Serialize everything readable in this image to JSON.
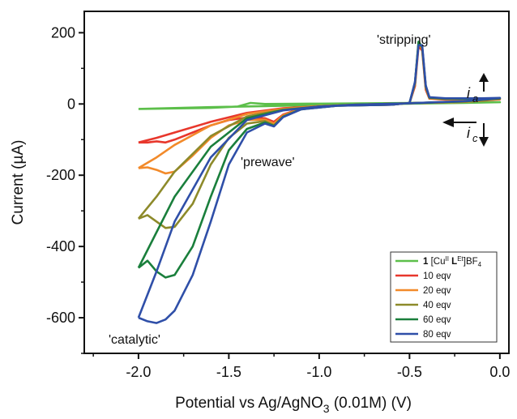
{
  "chart_data": {
    "type": "line",
    "title": "",
    "xlabel": "Potential vs Ag/AgNO",
    "xlabel_sub": "3",
    "xlabel_tail": " (0.01M) (V)",
    "ylabel": "Current (µA)",
    "xlim": [
      -2.3,
      0.05
    ],
    "ylim": [
      -700,
      260
    ],
    "xticks": [
      -2.0,
      -1.5,
      -1.0,
      -0.5,
      0.0
    ],
    "xtick_labels": [
      "-2.0",
      "-1.5",
      "-1.0",
      "-0.5",
      "0.0"
    ],
    "yticks": [
      200,
      0,
      -200,
      -400,
      -600
    ],
    "ytick_labels": [
      "200",
      "0",
      "-200",
      "-400",
      "-600"
    ],
    "grid": false,
    "legend_position": "bottom-right",
    "legend": [
      {
        "bold": "1",
        "text": " [Cu",
        "sup1": "II",
        "bold2": " L",
        "sup2": "Et",
        "tail": "]BF",
        "sub": "4",
        "color": "#5cbf4a"
      },
      {
        "text": "10  eqv",
        "color": "#e8372c"
      },
      {
        "text": "20  eqv",
        "color": "#f28a2a"
      },
      {
        "text": "40  eqv",
        "color": "#8d8a2a"
      },
      {
        "text": "60  eqv",
        "color": "#1a7f3c"
      },
      {
        "text": "80  eqv",
        "color": "#2f4fa8"
      }
    ],
    "annotations": {
      "stripping": "'stripping'",
      "prewave": "'prewave'",
      "catalytic": "'catalytic'",
      "ia_main": "i",
      "ia_sub": "a",
      "ic_main": "i",
      "ic_sub": "c"
    },
    "series": [
      {
        "color": "#5cbf4a",
        "points": [
          [
            -2.0,
            -14
          ],
          [
            -1.6,
            -11
          ],
          [
            -1.45,
            -7
          ],
          [
            -1.38,
            3
          ],
          [
            -1.3,
            0
          ],
          [
            -1.0,
            1
          ],
          [
            -0.7,
            2
          ],
          [
            -0.5,
            3
          ],
          [
            -0.2,
            4
          ],
          [
            0.0,
            5
          ],
          [
            -0.2,
            3
          ],
          [
            -0.5,
            1
          ],
          [
            -0.9,
            -2
          ],
          [
            -1.3,
            -6
          ],
          [
            -1.6,
            -9
          ],
          [
            -2.0,
            -14
          ]
        ]
      },
      {
        "color": "#e8372c",
        "points": [
          [
            -2.0,
            -108
          ],
          [
            -1.95,
            -108
          ],
          [
            -1.9,
            -105
          ],
          [
            -1.85,
            -108
          ],
          [
            -1.8,
            -100
          ],
          [
            -1.7,
            -80
          ],
          [
            -1.6,
            -60
          ],
          [
            -1.5,
            -45
          ],
          [
            -1.4,
            -38
          ],
          [
            -1.3,
            -40
          ],
          [
            -1.25,
            -50
          ],
          [
            -1.2,
            -30
          ],
          [
            -1.1,
            -12
          ],
          [
            -0.9,
            -4
          ],
          [
            -0.6,
            -2
          ],
          [
            -0.5,
            3
          ],
          [
            -0.47,
            50
          ],
          [
            -0.45,
            162
          ],
          [
            -0.43,
            150
          ],
          [
            -0.41,
            40
          ],
          [
            -0.39,
            15
          ],
          [
            -0.3,
            12
          ],
          [
            -0.1,
            12
          ],
          [
            0.0,
            13
          ],
          [
            -0.2,
            6
          ],
          [
            -0.5,
            2
          ],
          [
            -0.8,
            -2
          ],
          [
            -1.0,
            -6
          ],
          [
            -1.2,
            -12
          ],
          [
            -1.4,
            -25
          ],
          [
            -1.6,
            -50
          ],
          [
            -1.8,
            -80
          ],
          [
            -1.9,
            -95
          ],
          [
            -2.0,
            -108
          ]
        ]
      },
      {
        "color": "#f28a2a",
        "points": [
          [
            -2.0,
            -180
          ],
          [
            -1.95,
            -178
          ],
          [
            -1.9,
            -185
          ],
          [
            -1.85,
            -195
          ],
          [
            -1.8,
            -190
          ],
          [
            -1.7,
            -145
          ],
          [
            -1.6,
            -95
          ],
          [
            -1.5,
            -60
          ],
          [
            -1.4,
            -45
          ],
          [
            -1.3,
            -44
          ],
          [
            -1.25,
            -55
          ],
          [
            -1.2,
            -32
          ],
          [
            -1.1,
            -12
          ],
          [
            -0.9,
            -4
          ],
          [
            -0.6,
            -2
          ],
          [
            -0.5,
            3
          ],
          [
            -0.47,
            55
          ],
          [
            -0.45,
            170
          ],
          [
            -0.43,
            155
          ],
          [
            -0.41,
            45
          ],
          [
            -0.39,
            16
          ],
          [
            -0.3,
            13
          ],
          [
            -0.1,
            13
          ],
          [
            0.0,
            14
          ],
          [
            -0.2,
            6
          ],
          [
            -0.5,
            2
          ],
          [
            -0.8,
            -2
          ],
          [
            -1.0,
            -6
          ],
          [
            -1.2,
            -14
          ],
          [
            -1.4,
            -28
          ],
          [
            -1.6,
            -60
          ],
          [
            -1.8,
            -115
          ],
          [
            -1.9,
            -150
          ],
          [
            -2.0,
            -180
          ]
        ]
      },
      {
        "color": "#8d8a2a",
        "points": [
          [
            -2.0,
            -322
          ],
          [
            -1.95,
            -312
          ],
          [
            -1.9,
            -330
          ],
          [
            -1.85,
            -348
          ],
          [
            -1.8,
            -345
          ],
          [
            -1.7,
            -280
          ],
          [
            -1.6,
            -170
          ],
          [
            -1.5,
            -95
          ],
          [
            -1.4,
            -55
          ],
          [
            -1.3,
            -48
          ],
          [
            -1.25,
            -60
          ],
          [
            -1.2,
            -35
          ],
          [
            -1.1,
            -14
          ],
          [
            -0.9,
            -5
          ],
          [
            -0.6,
            -2
          ],
          [
            -0.5,
            3
          ],
          [
            -0.47,
            58
          ],
          [
            -0.45,
            172
          ],
          [
            -0.43,
            158
          ],
          [
            -0.41,
            48
          ],
          [
            -0.39,
            17
          ],
          [
            -0.3,
            14
          ],
          [
            -0.1,
            14
          ],
          [
            0.0,
            15
          ],
          [
            -0.2,
            7
          ],
          [
            -0.5,
            2
          ],
          [
            -0.8,
            -2
          ],
          [
            -1.0,
            -7
          ],
          [
            -1.2,
            -16
          ],
          [
            -1.4,
            -35
          ],
          [
            -1.6,
            -90
          ],
          [
            -1.8,
            -190
          ],
          [
            -1.9,
            -260
          ],
          [
            -2.0,
            -322
          ]
        ]
      },
      {
        "color": "#1a7f3c",
        "points": [
          [
            -2.0,
            -460
          ],
          [
            -1.95,
            -440
          ],
          [
            -1.9,
            -470
          ],
          [
            -1.85,
            -487
          ],
          [
            -1.8,
            -480
          ],
          [
            -1.7,
            -400
          ],
          [
            -1.6,
            -260
          ],
          [
            -1.5,
            -130
          ],
          [
            -1.4,
            -70
          ],
          [
            -1.3,
            -52
          ],
          [
            -1.25,
            -62
          ],
          [
            -1.2,
            -36
          ],
          [
            -1.1,
            -15
          ],
          [
            -0.9,
            -5
          ],
          [
            -0.6,
            -2
          ],
          [
            -0.5,
            3
          ],
          [
            -0.47,
            60
          ],
          [
            -0.45,
            175
          ],
          [
            -0.43,
            160
          ],
          [
            -0.41,
            50
          ],
          [
            -0.39,
            18
          ],
          [
            -0.3,
            15
          ],
          [
            -0.1,
            15
          ],
          [
            0.0,
            16
          ],
          [
            -0.2,
            7
          ],
          [
            -0.5,
            2
          ],
          [
            -0.8,
            -2
          ],
          [
            -1.0,
            -7
          ],
          [
            -1.2,
            -17
          ],
          [
            -1.4,
            -40
          ],
          [
            -1.6,
            -120
          ],
          [
            -1.8,
            -260
          ],
          [
            -1.9,
            -360
          ],
          [
            -2.0,
            -460
          ]
        ]
      },
      {
        "color": "#2f4fa8",
        "points": [
          [
            -2.0,
            -600
          ],
          [
            -1.95,
            -610
          ],
          [
            -1.9,
            -615
          ],
          [
            -1.85,
            -605
          ],
          [
            -1.8,
            -580
          ],
          [
            -1.7,
            -480
          ],
          [
            -1.6,
            -330
          ],
          [
            -1.5,
            -170
          ],
          [
            -1.4,
            -80
          ],
          [
            -1.3,
            -55
          ],
          [
            -1.25,
            -63
          ],
          [
            -1.2,
            -37
          ],
          [
            -1.1,
            -15
          ],
          [
            -0.9,
            -5
          ],
          [
            -0.6,
            -2
          ],
          [
            -0.5,
            3
          ],
          [
            -0.47,
            62
          ],
          [
            -0.45,
            165
          ],
          [
            -0.43,
            165
          ],
          [
            -0.41,
            52
          ],
          [
            -0.39,
            19
          ],
          [
            -0.3,
            16
          ],
          [
            -0.1,
            16
          ],
          [
            0.0,
            17
          ],
          [
            -0.2,
            8
          ],
          [
            -0.5,
            2
          ],
          [
            -0.8,
            -2
          ],
          [
            -1.0,
            -7
          ],
          [
            -1.2,
            -18
          ],
          [
            -1.4,
            -45
          ],
          [
            -1.6,
            -150
          ],
          [
            -1.8,
            -330
          ],
          [
            -1.9,
            -470
          ],
          [
            -2.0,
            -600
          ]
        ]
      }
    ]
  }
}
